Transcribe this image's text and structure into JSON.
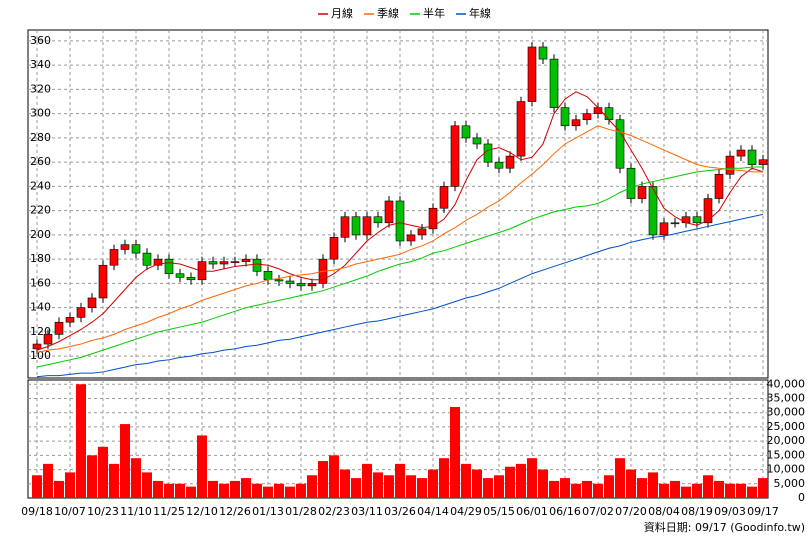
{
  "chart_data": {
    "type": "candlestick",
    "categories": [
      "09/18",
      null,
      null,
      "10/07",
      null,
      null,
      "10/23",
      null,
      null,
      "11/10",
      null,
      null,
      "11/25",
      null,
      null,
      "12/10",
      null,
      null,
      "12/26",
      null,
      null,
      "01/13",
      null,
      null,
      "01/28",
      null,
      null,
      "02/23",
      null,
      null,
      "03/11",
      null,
      null,
      "03/26",
      null,
      null,
      "04/14",
      null,
      null,
      "04/29",
      null,
      null,
      "05/15",
      null,
      null,
      "06/01",
      null,
      null,
      "06/16",
      null,
      null,
      "07/02",
      null,
      null,
      "07/20",
      null,
      null,
      "08/04",
      null,
      null,
      "08/19",
      null,
      null,
      "09/03",
      null,
      null,
      "09/17"
    ],
    "open": [
      106,
      110,
      118,
      128,
      132,
      140,
      148,
      175,
      188,
      192,
      185,
      175,
      180,
      168,
      165,
      163,
      178,
      176,
      178,
      178,
      180,
      170,
      163,
      162,
      160,
      158,
      160,
      180,
      198,
      215,
      200,
      215,
      210,
      228,
      195,
      200,
      205,
      222,
      240,
      290,
      280,
      275,
      260,
      255,
      265,
      310,
      355,
      345,
      305,
      290,
      295,
      300,
      305,
      295,
      255,
      230,
      240,
      200,
      210,
      210,
      215,
      210,
      230,
      250,
      265,
      270,
      258
    ],
    "high": [
      114,
      122,
      132,
      136,
      144,
      152,
      179,
      192,
      196,
      196,
      189,
      184,
      184,
      172,
      169,
      182,
      182,
      182,
      182,
      184,
      184,
      174,
      167,
      166,
      164,
      164,
      184,
      202,
      219,
      219,
      219,
      219,
      232,
      232,
      204,
      209,
      226,
      244,
      294,
      294,
      284,
      279,
      264,
      269,
      314,
      359,
      359,
      349,
      309,
      299,
      304,
      309,
      309,
      299,
      259,
      244,
      244,
      214,
      214,
      219,
      219,
      234,
      254,
      269,
      274,
      274,
      266
    ],
    "low": [
      102,
      106,
      114,
      124,
      128,
      136,
      144,
      171,
      184,
      181,
      171,
      171,
      164,
      161,
      159,
      159,
      172,
      172,
      174,
      174,
      166,
      159,
      158,
      156,
      154,
      154,
      156,
      176,
      194,
      196,
      196,
      206,
      206,
      191,
      191,
      196,
      201,
      218,
      236,
      276,
      271,
      256,
      251,
      251,
      261,
      306,
      341,
      301,
      286,
      286,
      291,
      296,
      291,
      251,
      226,
      226,
      196,
      196,
      206,
      206,
      206,
      206,
      226,
      246,
      261,
      254,
      254
    ],
    "close": [
      110,
      118,
      128,
      132,
      140,
      148,
      175,
      188,
      192,
      185,
      175,
      180,
      168,
      165,
      163,
      178,
      176,
      178,
      178,
      180,
      170,
      163,
      162,
      160,
      158,
      160,
      180,
      198,
      215,
      200,
      215,
      210,
      228,
      195,
      200,
      205,
      222,
      240,
      290,
      280,
      275,
      260,
      255,
      265,
      310,
      355,
      345,
      305,
      290,
      295,
      300,
      305,
      295,
      255,
      230,
      240,
      200,
      210,
      210,
      215,
      210,
      230,
      250,
      265,
      270,
      258,
      262
    ],
    "up_color": "#ff0000",
    "down_color": "#00c000",
    "series": [
      {
        "name": "月線",
        "color": "#d00000",
        "values": [
          105,
          108,
          112,
          117,
          122,
          128,
          135,
          145,
          155,
          165,
          172,
          176,
          177,
          176,
          173,
          170,
          170,
          172,
          174,
          175,
          176,
          175,
          172,
          168,
          165,
          163,
          163,
          168,
          175,
          185,
          195,
          202,
          208,
          210,
          208,
          206,
          207,
          213,
          225,
          245,
          262,
          270,
          272,
          268,
          262,
          264,
          275,
          300,
          312,
          318,
          314,
          305,
          295,
          285,
          270,
          255,
          238,
          222,
          215,
          210,
          208,
          212,
          220,
          235,
          248,
          255,
          252
        ]
      },
      {
        "name": "季線",
        "color": "#ff6600",
        "values": [
          103,
          105,
          106,
          108,
          110,
          113,
          115,
          118,
          122,
          125,
          128,
          132,
          135,
          139,
          142,
          146,
          149,
          152,
          155,
          158,
          160,
          163,
          164,
          166,
          167,
          168,
          170,
          171,
          173,
          176,
          178,
          180,
          182,
          184,
          188,
          191,
          195,
          201,
          206,
          212,
          217,
          223,
          228,
          235,
          243,
          250,
          258,
          267,
          275,
          280,
          285,
          290,
          287,
          285,
          282,
          278,
          274,
          270,
          266,
          262,
          258,
          256,
          255,
          254,
          253,
          252,
          252
        ]
      },
      {
        "name": "半年",
        "color": "#00cc00",
        "values": [
          91,
          93,
          95,
          97,
          99,
          102,
          105,
          108,
          111,
          114,
          117,
          120,
          122,
          124,
          126,
          128,
          131,
          134,
          137,
          140,
          142,
          144,
          146,
          148,
          150,
          152,
          154,
          157,
          160,
          163,
          166,
          170,
          173,
          176,
          178,
          181,
          185,
          187,
          190,
          193,
          196,
          199,
          202,
          205,
          209,
          213,
          216,
          219,
          221,
          223,
          224,
          226,
          230,
          235,
          239,
          242,
          244,
          246,
          248,
          250,
          252,
          253,
          254,
          255,
          255,
          256,
          256
        ]
      },
      {
        "name": "年線",
        "color": "#0050c8",
        "values": [
          83,
          84,
          84,
          85,
          86,
          86,
          87,
          89,
          91,
          93,
          94,
          96,
          97,
          99,
          100,
          102,
          103,
          105,
          106,
          108,
          109,
          111,
          113,
          114,
          116,
          118,
          120,
          122,
          124,
          126,
          128,
          129,
          131,
          133,
          135,
          137,
          139,
          142,
          145,
          148,
          150,
          153,
          156,
          160,
          164,
          168,
          171,
          174,
          177,
          180,
          183,
          186,
          189,
          191,
          194,
          196,
          198,
          199,
          201,
          203,
          205,
          207,
          209,
          211,
          213,
          215,
          217
        ]
      }
    ],
    "ylim": [
      82,
      369
    ],
    "yticks": [
      100,
      120,
      140,
      160,
      180,
      200,
      220,
      240,
      260,
      280,
      300,
      320,
      340,
      360
    ],
    "grid": true,
    "volume": [
      8000,
      12000,
      6000,
      9000,
      40000,
      15000,
      18000,
      12000,
      26000,
      14000,
      9000,
      6000,
      5000,
      5000,
      4000,
      22000,
      6000,
      5000,
      6000,
      7000,
      5000,
      4000,
      5000,
      4000,
      5000,
      8000,
      13000,
      15000,
      10000,
      7000,
      12000,
      9000,
      8000,
      12000,
      8000,
      7000,
      10000,
      14000,
      32000,
      12000,
      10000,
      7000,
      8000,
      11000,
      12000,
      14000,
      10000,
      6000,
      7000,
      5000,
      6000,
      5000,
      8000,
      14000,
      10000,
      7000,
      9000,
      5000,
      6000,
      4000,
      5000,
      8000,
      6000,
      5000,
      5000,
      4000,
      7000
    ],
    "volume_color": "#ff0000",
    "y2lim": [
      0,
      41500
    ],
    "y2ticks": [
      0,
      {
        "value": 5000,
        "label": "5,000"
      },
      {
        "value": 10000,
        "label": "10,000"
      },
      {
        "value": 15000,
        "label": "15,000"
      },
      {
        "value": 20000,
        "label": "20,000"
      },
      {
        "value": 25000,
        "label": "25,000"
      },
      {
        "value": 30000,
        "label": "30,000"
      },
      {
        "value": 35000,
        "label": "35,000"
      },
      {
        "value": 40000,
        "label": "40,000"
      }
    ],
    "annotation": "資料日期: 09/17 (Goodinfo.tw)"
  }
}
